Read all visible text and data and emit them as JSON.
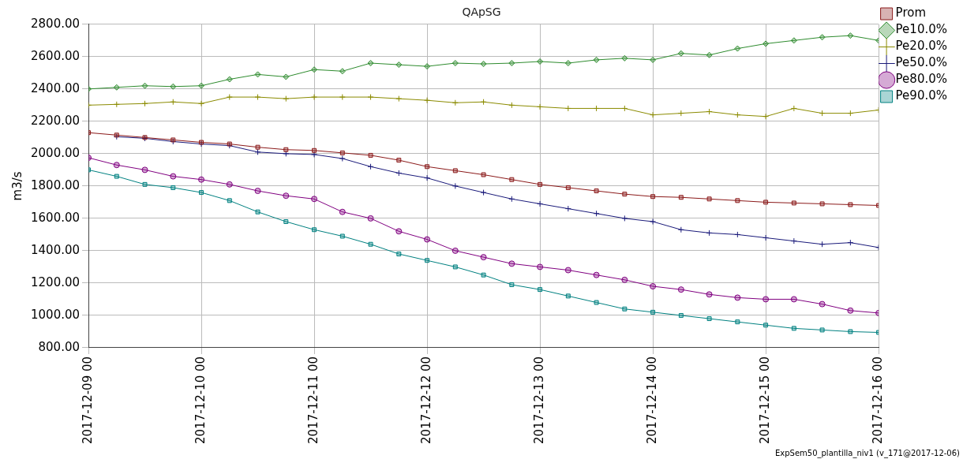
{
  "chart_data": {
    "type": "line",
    "title": "QApSG",
    "ylabel": "m3/s",
    "annotations": [
      "ExpSem50_plantilla_niv1 (v_171@2017-12-06)"
    ],
    "x": [
      "2017-12-09T00:00",
      "2017-12-09T06:00",
      "2017-12-09T12:00",
      "2017-12-09T18:00",
      "2017-12-10T00:00",
      "2017-12-10T06:00",
      "2017-12-10T12:00",
      "2017-12-10T18:00",
      "2017-12-11T00:00",
      "2017-12-11T06:00",
      "2017-12-11T12:00",
      "2017-12-11T18:00",
      "2017-12-12T00:00",
      "2017-12-12T06:00",
      "2017-12-12T12:00",
      "2017-12-12T18:00",
      "2017-12-13T00:00",
      "2017-12-13T06:00",
      "2017-12-13T12:00",
      "2017-12-13T18:00",
      "2017-12-14T00:00",
      "2017-12-14T06:00",
      "2017-12-14T12:00",
      "2017-12-14T18:00",
      "2017-12-15T00:00",
      "2017-12-15T06:00",
      "2017-12-15T12:00",
      "2017-12-15T18:00",
      "2017-12-16T00:00"
    ],
    "series": [
      {
        "name": "Prom",
        "color": "#8b1a1a",
        "marker": "square",
        "values": [
          2130,
          2115,
          2100,
          2085,
          2070,
          2060,
          2040,
          2025,
          2020,
          2005,
          1990,
          1960,
          1920,
          1895,
          1870,
          1840,
          1810,
          1790,
          1770,
          1750,
          1735,
          1730,
          1720,
          1710,
          1700,
          1695,
          1690,
          1685,
          1680
        ]
      },
      {
        "name": "Pe10.0%",
        "color": "#2e8b2e",
        "marker": "diamond",
        "values": [
          2400,
          2410,
          2420,
          2415,
          2420,
          2460,
          2490,
          2475,
          2520,
          2510,
          2560,
          2550,
          2540,
          2560,
          2555,
          2560,
          2570,
          2560,
          2580,
          2590,
          2580,
          2620,
          2610,
          2650,
          2680,
          2700,
          2720,
          2730,
          2700
        ]
      },
      {
        "name": "Pe20.0%",
        "color": "#8b8b00",
        "marker": "cross",
        "values": [
          2300,
          2305,
          2310,
          2320,
          2310,
          2350,
          2350,
          2340,
          2350,
          2350,
          2350,
          2340,
          2330,
          2315,
          2320,
          2300,
          2290,
          2280,
          2280,
          2280,
          2240,
          2250,
          2260,
          2240,
          2230,
          2280,
          2250,
          2250,
          2270
        ]
      },
      {
        "name": "Pe50.0%",
        "color": "#1a1a7a",
        "marker": "cross",
        "values": [
          null,
          2105,
          2095,
          2075,
          2060,
          2050,
          2010,
          2000,
          1995,
          1970,
          1920,
          1880,
          1850,
          1800,
          1760,
          1720,
          1690,
          1660,
          1630,
          1600,
          1580,
          1530,
          1510,
          1500,
          1480,
          1460,
          1440,
          1450,
          1420
        ]
      },
      {
        "name": "Pe80.0%",
        "color": "#800080",
        "marker": "circle",
        "values": [
          1975,
          1930,
          1900,
          1860,
          1840,
          1810,
          1770,
          1740,
          1720,
          1640,
          1600,
          1520,
          1470,
          1400,
          1360,
          1320,
          1300,
          1280,
          1250,
          1220,
          1180,
          1160,
          1130,
          1110,
          1100,
          1100,
          1070,
          1030,
          1015
        ]
      },
      {
        "name": "Pe90.0%",
        "color": "#008080",
        "marker": "square",
        "values": [
          1900,
          1860,
          1810,
          1790,
          1760,
          1710,
          1640,
          1580,
          1530,
          1490,
          1440,
          1380,
          1340,
          1300,
          1250,
          1190,
          1160,
          1120,
          1080,
          1040,
          1020,
          1000,
          980,
          960,
          940,
          920,
          910,
          900,
          895
        ]
      }
    ],
    "xlim": [
      "2017-12-09T00:00",
      "2017-12-16T00:00"
    ],
    "xticks": [
      {
        "value": "2017-12-09T00:00",
        "label": "2017-12-09 00"
      },
      {
        "value": "2017-12-10T00:00",
        "label": "2017-12-10 00"
      },
      {
        "value": "2017-12-11T00:00",
        "label": "2017-12-11 00"
      },
      {
        "value": "2017-12-12T00:00",
        "label": "2017-12-12 00"
      },
      {
        "value": "2017-12-13T00:00",
        "label": "2017-12-13 00"
      },
      {
        "value": "2017-12-14T00:00",
        "label": "2017-12-14 00"
      },
      {
        "value": "2017-12-15T00:00",
        "label": "2017-12-15 00"
      },
      {
        "value": "2017-12-16T00:00",
        "label": "2017-12-16 00"
      }
    ],
    "ylim": [
      800,
      2800
    ],
    "yticks": [
      {
        "value": 800,
        "label": "800.00"
      },
      {
        "value": 1000,
        "label": "1000.00"
      },
      {
        "value": 1200,
        "label": "1200.00"
      },
      {
        "value": 1400,
        "label": "1400.00"
      },
      {
        "value": 1600,
        "label": "1600.00"
      },
      {
        "value": 1800,
        "label": "1800.00"
      },
      {
        "value": 2000,
        "label": "2000.00"
      },
      {
        "value": 2200,
        "label": "2200.00"
      },
      {
        "value": 2400,
        "label": "2400.00"
      },
      {
        "value": 2600,
        "label": "2600.00"
      },
      {
        "value": 2800,
        "label": "2800.00"
      }
    ],
    "grid": true,
    "legend": "right"
  }
}
